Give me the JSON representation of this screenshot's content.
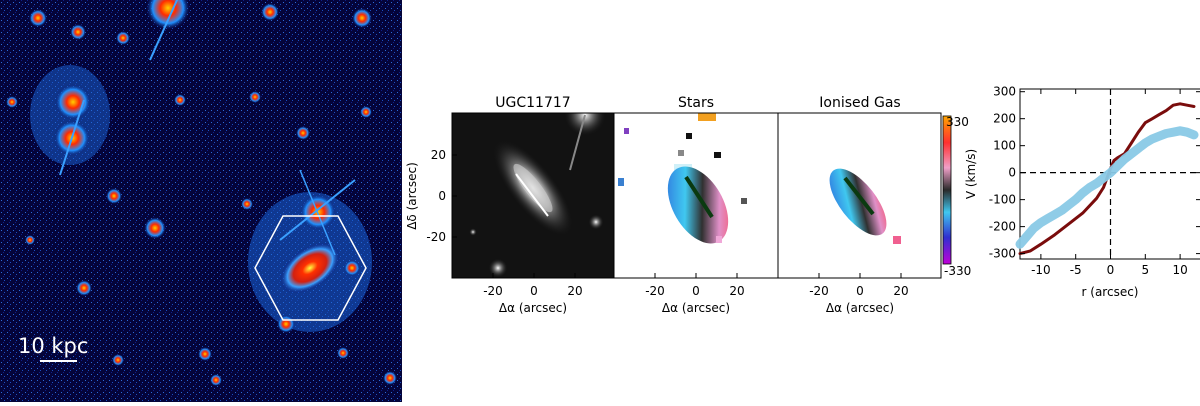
{
  "deep_image": {
    "scale_bar_label": "10 kpc"
  },
  "panels": {
    "galaxy": {
      "title": "UGC11717"
    },
    "stars": {
      "title": "Stars"
    },
    "gas": {
      "title": "Ionised Gas"
    }
  },
  "axes": {
    "ra_label": "Δα  (arcsec)",
    "dec_label": "Δδ  (arcsec)",
    "x_ticks": [
      "-20",
      "0",
      "20"
    ],
    "y_ticks": [
      "20",
      "0",
      "-20"
    ]
  },
  "colorbar": {
    "top_label": "330",
    "bottom_label": "-330",
    "axis_label": "V  (km/s)"
  },
  "chart_data": {
    "type": "line",
    "xlabel": "r  (arcsec)",
    "ylabel": "V  (km/s)",
    "xlim": [
      -13,
      13
    ],
    "ylim": [
      -320,
      310
    ],
    "xticks": [
      -10,
      -5,
      0,
      5,
      10
    ],
    "yticks": [
      -300,
      -200,
      -100,
      0,
      100,
      200,
      300
    ],
    "reference_lines": {
      "x": 0,
      "y": 0,
      "style": "dashed"
    },
    "series": [
      {
        "color": "#7a0c0c",
        "points": [
          [
            -13,
            -300
          ],
          [
            -11.5,
            -290
          ],
          [
            -10,
            -265
          ],
          [
            -8,
            -230
          ],
          [
            -6,
            -190
          ],
          [
            -4,
            -150
          ],
          [
            -2,
            -95
          ],
          [
            -1,
            -55
          ],
          [
            0,
            15
          ],
          [
            0.5,
            45
          ],
          [
            1,
            55
          ],
          [
            2,
            70
          ],
          [
            3,
            110
          ],
          [
            4,
            150
          ],
          [
            5,
            185
          ],
          [
            6,
            200
          ],
          [
            7,
            215
          ],
          [
            8,
            230
          ],
          [
            9,
            250
          ],
          [
            10,
            255
          ],
          [
            11,
            250
          ],
          [
            12,
            245
          ]
        ]
      },
      {
        "color": "#89c9e6",
        "points": [
          [
            -13,
            -265
          ],
          [
            -12,
            -235
          ],
          [
            -11,
            -205
          ],
          [
            -10,
            -185
          ],
          [
            -9,
            -170
          ],
          [
            -8,
            -155
          ],
          [
            -7,
            -140
          ],
          [
            -6,
            -120
          ],
          [
            -5,
            -100
          ],
          [
            -4,
            -75
          ],
          [
            -3,
            -55
          ],
          [
            -2,
            -40
          ],
          [
            -1,
            -20
          ],
          [
            0,
            0
          ],
          [
            1,
            25
          ],
          [
            2,
            50
          ],
          [
            3,
            70
          ],
          [
            4,
            90
          ],
          [
            5,
            110
          ],
          [
            6,
            125
          ],
          [
            7,
            135
          ],
          [
            8,
            145
          ],
          [
            9,
            150
          ],
          [
            10,
            155
          ],
          [
            11,
            150
          ],
          [
            12,
            140
          ]
        ]
      }
    ]
  }
}
